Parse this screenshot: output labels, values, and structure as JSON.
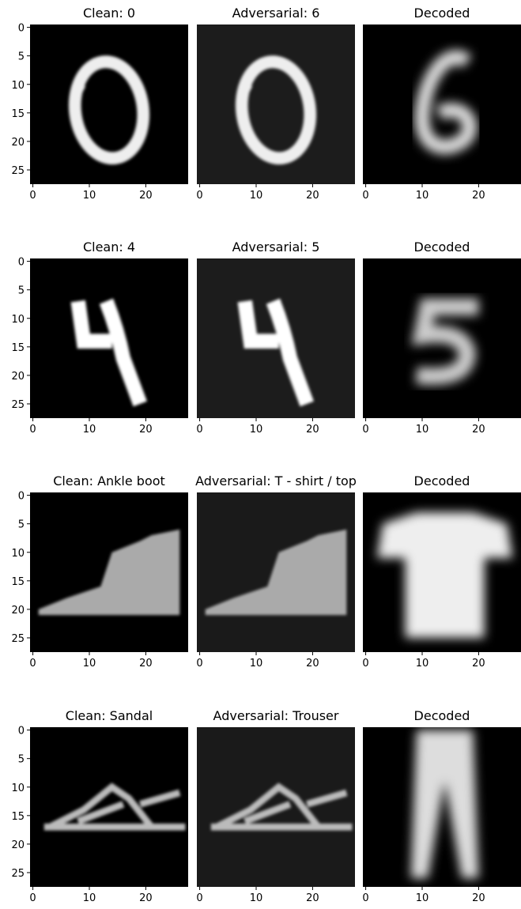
{
  "chart_data": [
    {
      "type": "image",
      "title": "Clean: 0",
      "xlim": [
        -0.5,
        27.5
      ],
      "ylim": [
        27.5,
        -0.5
      ],
      "xticks": [
        0,
        10,
        20
      ],
      "yticks": [
        0,
        5,
        10,
        15,
        20,
        25
      ]
    },
    {
      "type": "image",
      "title": "Adversarial: 6",
      "xlim": [
        -0.5,
        27.5
      ],
      "ylim": [
        27.5,
        -0.5
      ],
      "xticks": [
        0,
        10,
        20
      ]
    },
    {
      "type": "image",
      "title": "Decoded",
      "xlim": [
        -0.5,
        27.5
      ],
      "ylim": [
        27.5,
        -0.5
      ],
      "xticks": [
        0,
        10,
        20
      ]
    },
    {
      "type": "image",
      "title": "Clean: 4",
      "xlim": [
        -0.5,
        27.5
      ],
      "ylim": [
        27.5,
        -0.5
      ],
      "xticks": [
        0,
        10,
        20
      ],
      "yticks": [
        0,
        5,
        10,
        15,
        20,
        25
      ]
    },
    {
      "type": "image",
      "title": "Adversarial: 5",
      "xlim": [
        -0.5,
        27.5
      ],
      "ylim": [
        27.5,
        -0.5
      ],
      "xticks": [
        0,
        10,
        20
      ]
    },
    {
      "type": "image",
      "title": "Decoded",
      "xlim": [
        -0.5,
        27.5
      ],
      "ylim": [
        27.5,
        -0.5
      ],
      "xticks": [
        0,
        10,
        20
      ]
    },
    {
      "type": "image",
      "title": "Clean: Ankle boot",
      "xlim": [
        -0.5,
        27.5
      ],
      "ylim": [
        27.5,
        -0.5
      ],
      "xticks": [
        0,
        10,
        20
      ],
      "yticks": [
        0,
        5,
        10,
        15,
        20,
        25
      ]
    },
    {
      "type": "image",
      "title": "Adversarial: T - shirt / top",
      "xlim": [
        -0.5,
        27.5
      ],
      "ylim": [
        27.5,
        -0.5
      ],
      "xticks": [
        0,
        10,
        20
      ]
    },
    {
      "type": "image",
      "title": "Decoded",
      "xlim": [
        -0.5,
        27.5
      ],
      "ylim": [
        27.5,
        -0.5
      ],
      "xticks": [
        0,
        10,
        20
      ]
    },
    {
      "type": "image",
      "title": "Clean: Sandal",
      "xlim": [
        -0.5,
        27.5
      ],
      "ylim": [
        27.5,
        -0.5
      ],
      "xticks": [
        0,
        10,
        20
      ],
      "yticks": [
        0,
        5,
        10,
        15,
        20,
        25
      ]
    },
    {
      "type": "image",
      "title": "Adversarial: Trouser",
      "xlim": [
        -0.5,
        27.5
      ],
      "ylim": [
        27.5,
        -0.5
      ],
      "xticks": [
        0,
        10,
        20
      ]
    },
    {
      "type": "image",
      "title": "Decoded",
      "xlim": [
        -0.5,
        27.5
      ],
      "ylim": [
        27.5,
        -0.5
      ],
      "xticks": [
        0,
        10,
        20
      ]
    }
  ]
}
